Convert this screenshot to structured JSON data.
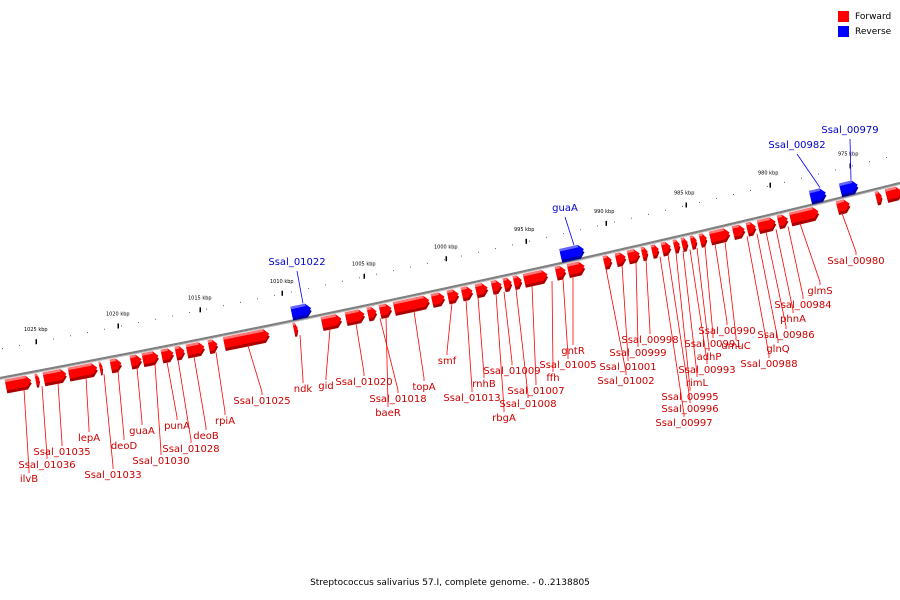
{
  "legend": {
    "items": [
      {
        "label": "Forward",
        "color": "#ff0000"
      },
      {
        "label": "Reverse",
        "color": "#0000ff"
      }
    ]
  },
  "caption": "Streptococcus salivarius 57.I, complete genome. - 0..2138805",
  "colors": {
    "forward": "#ff0000",
    "reverse": "#0000ff",
    "forward_label": "#cc0000",
    "reverse_label": "#0000cc",
    "backbone": "#808080"
  },
  "scale": {
    "ticks": [
      "975 kbp",
      "980 kbp",
      "985 kbp",
      "990 kbp",
      "995 kbp",
      "1000 kbp",
      "1005 kbp",
      "1010 kbp",
      "1015 kbp",
      "1020 kbp",
      "1025 kbp"
    ]
  },
  "reverse_genes": [
    "Ssal_00979",
    "Ssal_00982",
    "guaA",
    "Ssal_01022"
  ],
  "forward_genes": [
    "glmS",
    "Ssal_00980",
    "Ssal_00984",
    "phnA",
    "Ssal_00986",
    "glnQ",
    "Ssal_00988",
    "umuC",
    "Ssal_00990",
    "Ssal_00991",
    "adhP",
    "Ssal_00993",
    "rimL",
    "Ssal_00995",
    "Ssal_00996",
    "Ssal_00997",
    "Ssal_00998",
    "Ssal_00999",
    "Ssal_01001",
    "Ssal_01002",
    "gntR",
    "Ssal_01005",
    "ffh",
    "Ssal_01007",
    "Ssal_01008",
    "Ssal_01009",
    "rbgA",
    "rnhB",
    "Ssal_01013",
    "smf",
    "topA",
    "baeR",
    "Ssal_01018",
    "Ssal_01020",
    "gid",
    "ndk",
    "Ssal_01025",
    "rpiA",
    "deoB",
    "Ssal_01028",
    "punA",
    "Ssal_01030",
    "guaA",
    "deoD",
    "Ssal_01033",
    "lepA",
    "Ssal_01035",
    "Ssal_01036",
    "ilvB"
  ]
}
